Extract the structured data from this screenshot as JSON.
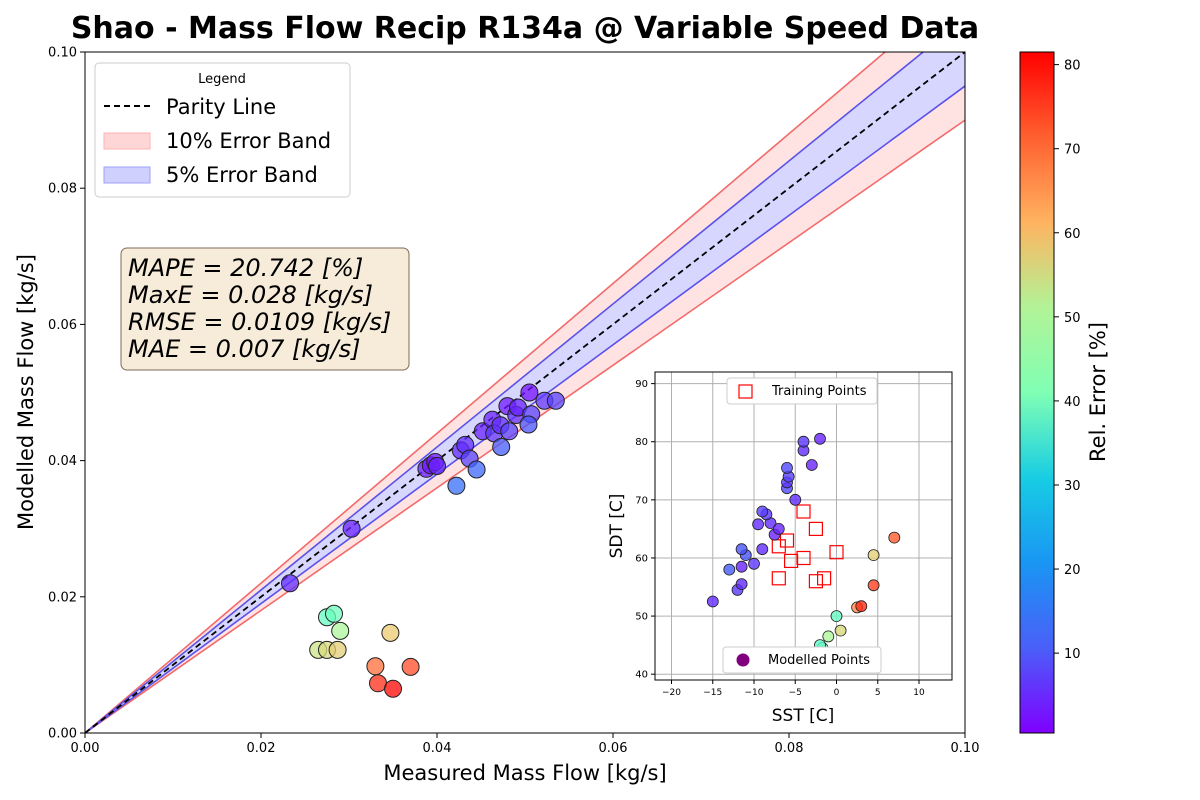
{
  "chart_data": [
    {
      "type": "scatter",
      "title": "Shao - Mass Flow Recip R134a @ Variable Speed Data",
      "xlabel": "Measured Mass Flow [kg/s]",
      "ylabel": "Modelled Mass Flow [kg/s]",
      "xlim": [
        0,
        0.1
      ],
      "ylim": [
        0,
        0.1
      ],
      "x_ticks": [
        "0.00",
        "0.02",
        "0.04",
        "0.06",
        "0.08",
        "0.10"
      ],
      "y_ticks": [
        "0.00",
        "0.02",
        "0.04",
        "0.06",
        "0.08",
        "0.10"
      ],
      "grid": false,
      "legend": {
        "title": "Legend",
        "position": "top-left",
        "entries": [
          "Parity Line",
          "10% Error Band",
          "5% Error Band"
        ]
      },
      "bands": {
        "ten_percent": [
          0.9,
          1.1
        ],
        "five_percent": [
          0.95,
          1.05
        ]
      },
      "stats": [
        "MAPE = 20.742 [%]",
        "MaxE = 0.028 [kg/s]",
        "RMSE = 0.0109 [kg/s]",
        "MAE = 0.007 [kg/s]"
      ],
      "points": [
        {
          "x": 0.0233,
          "y": 0.022,
          "err": 5
        },
        {
          "x": 0.0303,
          "y": 0.03,
          "err": 4
        },
        {
          "x": 0.0388,
          "y": 0.0388,
          "err": 3
        },
        {
          "x": 0.0393,
          "y": 0.0393,
          "err": 3
        },
        {
          "x": 0.0398,
          "y": 0.0398,
          "err": 3
        },
        {
          "x": 0.04,
          "y": 0.0392,
          "err": 4
        },
        {
          "x": 0.0427,
          "y": 0.0415,
          "err": 5
        },
        {
          "x": 0.0432,
          "y": 0.0423,
          "err": 5
        },
        {
          "x": 0.0437,
          "y": 0.0403,
          "err": 7
        },
        {
          "x": 0.0422,
          "y": 0.0363,
          "err": 12
        },
        {
          "x": 0.0445,
          "y": 0.0387,
          "err": 11
        },
        {
          "x": 0.0452,
          "y": 0.0443,
          "err": 4
        },
        {
          "x": 0.0463,
          "y": 0.046,
          "err": 4
        },
        {
          "x": 0.0465,
          "y": 0.044,
          "err": 6
        },
        {
          "x": 0.0472,
          "y": 0.0452,
          "err": 5
        },
        {
          "x": 0.0473,
          "y": 0.042,
          "err": 10
        },
        {
          "x": 0.048,
          "y": 0.048,
          "err": 3
        },
        {
          "x": 0.0482,
          "y": 0.0443,
          "err": 7
        },
        {
          "x": 0.049,
          "y": 0.0467,
          "err": 5
        },
        {
          "x": 0.0492,
          "y": 0.0478,
          "err": 4
        },
        {
          "x": 0.0505,
          "y": 0.05,
          "err": 2
        },
        {
          "x": 0.0507,
          "y": 0.0468,
          "err": 7
        },
        {
          "x": 0.0504,
          "y": 0.0453,
          "err": 9
        },
        {
          "x": 0.0522,
          "y": 0.0488,
          "err": 6
        },
        {
          "x": 0.0535,
          "y": 0.0488,
          "err": 7
        },
        {
          "x": 0.0265,
          "y": 0.0122,
          "err": 53
        },
        {
          "x": 0.0275,
          "y": 0.0122,
          "err": 55
        },
        {
          "x": 0.0275,
          "y": 0.017,
          "err": 37
        },
        {
          "x": 0.0283,
          "y": 0.0175,
          "err": 38
        },
        {
          "x": 0.0287,
          "y": 0.0122,
          "err": 57
        },
        {
          "x": 0.029,
          "y": 0.015,
          "err": 48
        },
        {
          "x": 0.033,
          "y": 0.0098,
          "err": 70
        },
        {
          "x": 0.0333,
          "y": 0.0073,
          "err": 77
        },
        {
          "x": 0.0347,
          "y": 0.0147,
          "err": 58
        },
        {
          "x": 0.035,
          "y": 0.0065,
          "err": 81
        },
        {
          "x": 0.037,
          "y": 0.0097,
          "err": 74
        }
      ],
      "marker_colormap": "rainbow"
    },
    {
      "type": "scatter",
      "title": "",
      "xlabel": "SST [C]",
      "ylabel": "SDT [C]",
      "xlim": [
        -22,
        14
      ],
      "ylim": [
        39,
        92
      ],
      "x_ticks": [
        "−20",
        "−15",
        "−10",
        "−5",
        "0",
        "5",
        "10"
      ],
      "y_ticks": [
        "40",
        "50",
        "60",
        "70",
        "80",
        "90"
      ],
      "grid": true,
      "legend_training": "Training Points",
      "legend_modelled": "Modelled Points",
      "training_points": [
        {
          "x": -4,
          "y": 68
        },
        {
          "x": -2.5,
          "y": 65
        },
        {
          "x": -6,
          "y": 63
        },
        {
          "x": -7,
          "y": 62
        },
        {
          "x": 0,
          "y": 61
        },
        {
          "x": -4,
          "y": 60
        },
        {
          "x": -5.5,
          "y": 59.5
        },
        {
          "x": -7,
          "y": 56.5
        },
        {
          "x": -1.5,
          "y": 56.5
        },
        {
          "x": -2.5,
          "y": 56
        }
      ],
      "modelled_points": [
        {
          "x": -15,
          "y": 52.5,
          "err": 5
        },
        {
          "x": -12,
          "y": 54.5,
          "err": 6
        },
        {
          "x": -11.5,
          "y": 55.5,
          "err": 5
        },
        {
          "x": -13,
          "y": 58,
          "err": 10
        },
        {
          "x": -11.5,
          "y": 58.5,
          "err": 4
        },
        {
          "x": -10,
          "y": 59,
          "err": 6
        },
        {
          "x": -11,
          "y": 60.5,
          "err": 9
        },
        {
          "x": -11.5,
          "y": 61.5,
          "err": 9
        },
        {
          "x": -9,
          "y": 61.5,
          "err": 5
        },
        {
          "x": -9.5,
          "y": 65.8,
          "err": 5
        },
        {
          "x": -7.5,
          "y": 64,
          "err": 4
        },
        {
          "x": -8,
          "y": 66,
          "err": 5
        },
        {
          "x": -7,
          "y": 65,
          "err": 4
        },
        {
          "x": -8.5,
          "y": 67.5,
          "err": 6
        },
        {
          "x": -9,
          "y": 68,
          "err": 7
        },
        {
          "x": -5,
          "y": 70,
          "err": 5
        },
        {
          "x": -6,
          "y": 72,
          "err": 8
        },
        {
          "x": -6,
          "y": 73,
          "err": 6
        },
        {
          "x": -5.8,
          "y": 74,
          "err": 7
        },
        {
          "x": -6,
          "y": 75.5,
          "err": 8
        },
        {
          "x": -3,
          "y": 76,
          "err": 4
        },
        {
          "x": -4,
          "y": 78.5,
          "err": 5
        },
        {
          "x": -4,
          "y": 80,
          "err": 6
        },
        {
          "x": -2,
          "y": 80.5,
          "err": 4
        },
        {
          "x": -1,
          "y": 46.5,
          "err": 48
        },
        {
          "x": -1.7,
          "y": 44.5,
          "err": 40
        },
        {
          "x": 0,
          "y": 50,
          "err": 37
        },
        {
          "x": -2,
          "y": 45,
          "err": 36
        },
        {
          "x": 0.5,
          "y": 47.5,
          "err": 55
        },
        {
          "x": 4.5,
          "y": 60.5,
          "err": 57
        },
        {
          "x": 4.5,
          "y": 55.3,
          "err": 75
        },
        {
          "x": 7,
          "y": 63.5,
          "err": 72
        },
        {
          "x": 2.5,
          "y": 51.5,
          "err": 67
        },
        {
          "x": 3,
          "y": 51.7,
          "err": 77
        }
      ]
    },
    {
      "type": "colorbar",
      "label": "Rel. Error [%]",
      "range": [
        0.5,
        81.5
      ],
      "ticks": [
        "10",
        "20",
        "30",
        "40",
        "50",
        "60",
        "70",
        "80"
      ],
      "colormap": "rainbow"
    }
  ]
}
